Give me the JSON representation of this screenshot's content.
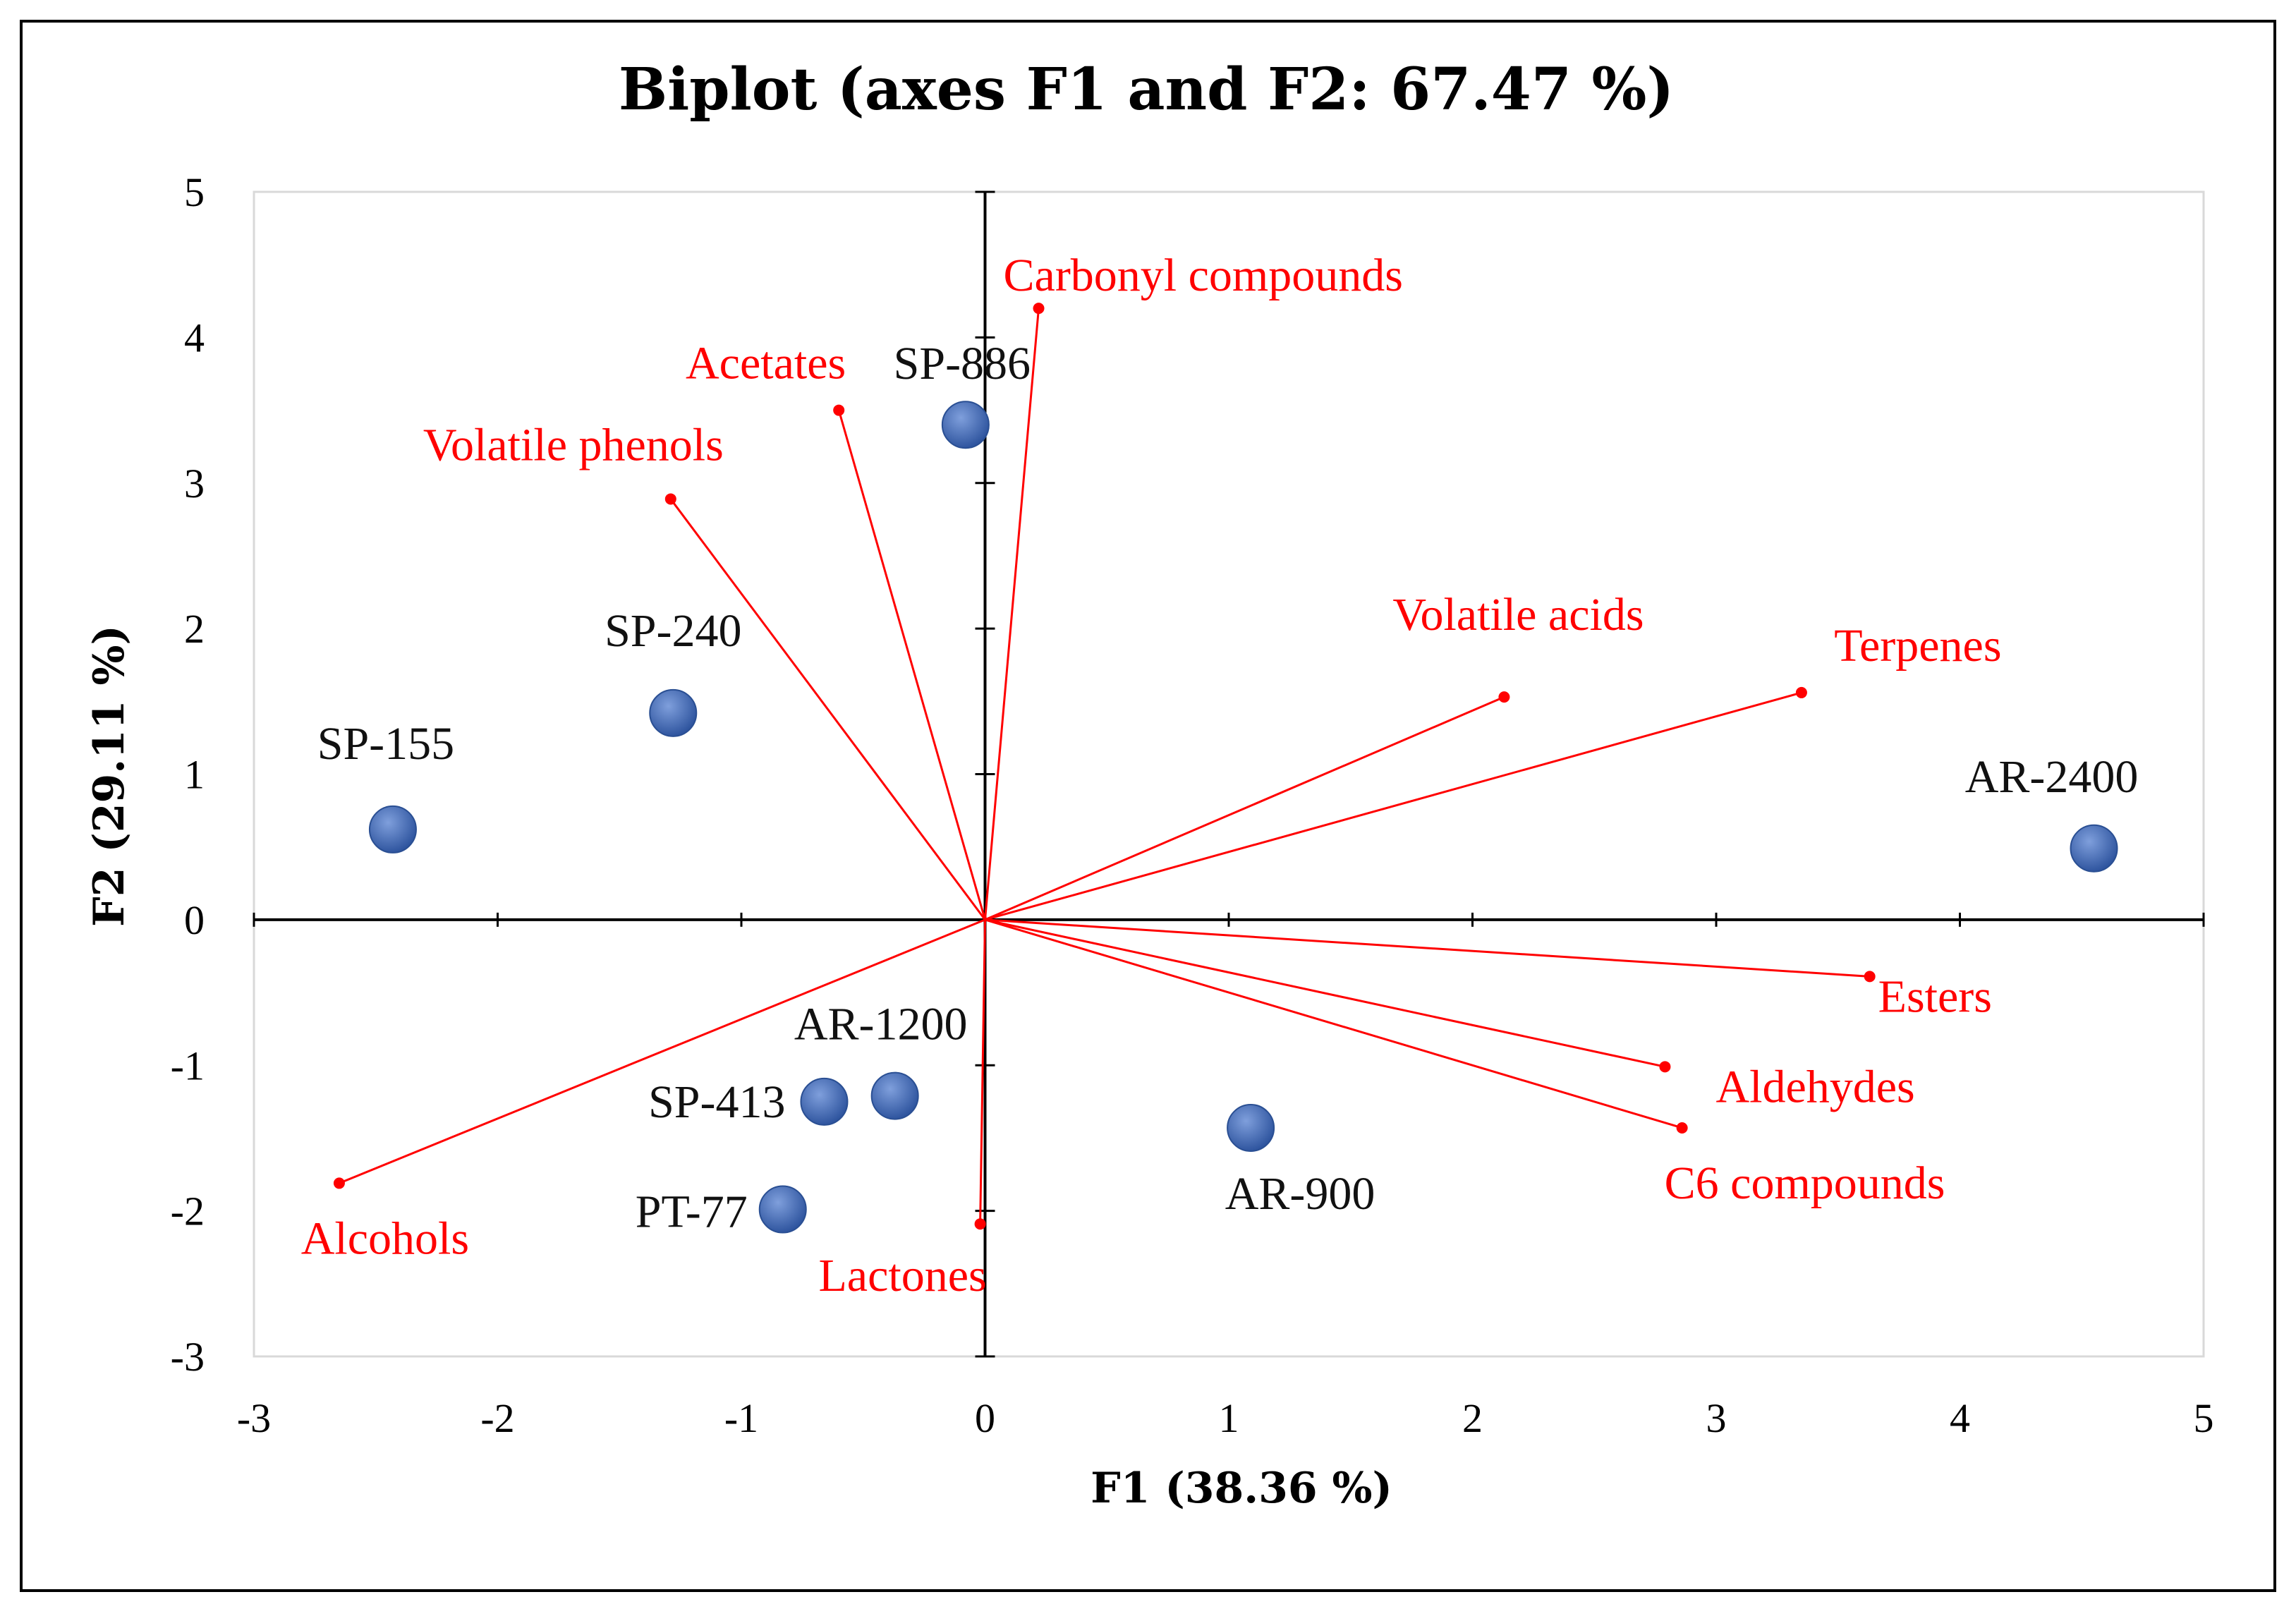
{
  "chart_data": {
    "type": "scatter",
    "subtype": "biplot",
    "title": "Biplot (axes F1 and F2: 67.47 %)",
    "xlabel": "F1 (38.36 %)",
    "ylabel": "F2 (29.11 %)",
    "xlim": [
      -3,
      5
    ],
    "ylim": [
      -3,
      5
    ],
    "xticks": [
      "-3",
      "-2",
      "-1",
      "0",
      "1",
      "2",
      "3",
      "4",
      "5"
    ],
    "yticks": [
      "5",
      "4",
      "3",
      "2",
      "1",
      "0",
      "-1",
      "-2",
      "-3"
    ],
    "colors": {
      "observations": "#4472c4",
      "variables": "#ff0000",
      "axes": "#000000",
      "plot_border": "#d9d9d9"
    },
    "observations": [
      {
        "label": "SP-886",
        "x": -0.08,
        "y": 3.4
      },
      {
        "label": "SP-240",
        "x": -1.28,
        "y": 1.42
      },
      {
        "label": "SP-155",
        "x": -2.43,
        "y": 0.62
      },
      {
        "label": "AR-2400",
        "x": 4.55,
        "y": 0.49
      },
      {
        "label": "AR-1200",
        "x": -0.37,
        "y": -1.21
      },
      {
        "label": "SP-413",
        "x": -0.66,
        "y": -1.25
      },
      {
        "label": "PT-77",
        "x": -0.83,
        "y": -1.99
      },
      {
        "label": "AR-900",
        "x": 1.09,
        "y": -1.43
      }
    ],
    "variables": [
      {
        "label": "Carbonyl compounds",
        "x": 0.22,
        "y": 4.2
      },
      {
        "label": "Acetates",
        "x": -0.6,
        "y": 3.5
      },
      {
        "label": "Volatile phenols",
        "x": -1.29,
        "y": 2.89
      },
      {
        "label": "Volatile acids",
        "x": 2.13,
        "y": 1.53
      },
      {
        "label": "Terpenes",
        "x": 3.35,
        "y": 1.56
      },
      {
        "label": "Esters",
        "x": 3.63,
        "y": -0.39
      },
      {
        "label": "Aldehydes",
        "x": 2.79,
        "y": -1.01
      },
      {
        "label": "C6 compounds",
        "x": 2.86,
        "y": -1.43
      },
      {
        "label": "Alcohols",
        "x": -2.65,
        "y": -1.81
      },
      {
        "label": "Lactones",
        "x": -0.02,
        "y": -2.09
      }
    ]
  }
}
